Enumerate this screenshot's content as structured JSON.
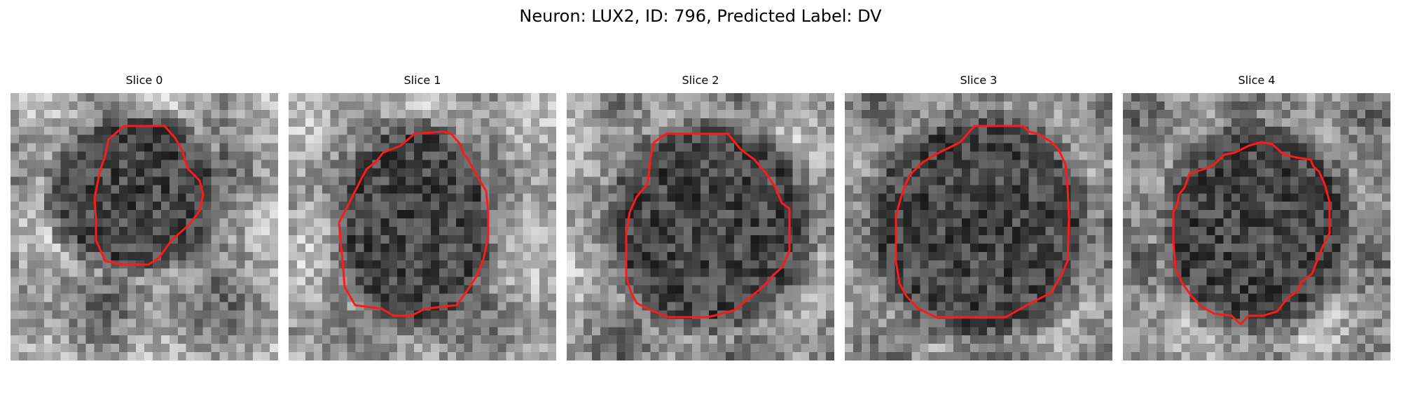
{
  "figure": {
    "title": "Neuron: LUX2, ID: 796, Predicted Label: DV"
  },
  "panels": [
    {
      "title": "Slice 0"
    },
    {
      "title": "Slice 1"
    },
    {
      "title": "Slice 2"
    },
    {
      "title": "Slice 3"
    },
    {
      "title": "Slice 4"
    }
  ],
  "colors": {
    "contour": "#ff1a1a",
    "colormap": "gray"
  }
}
